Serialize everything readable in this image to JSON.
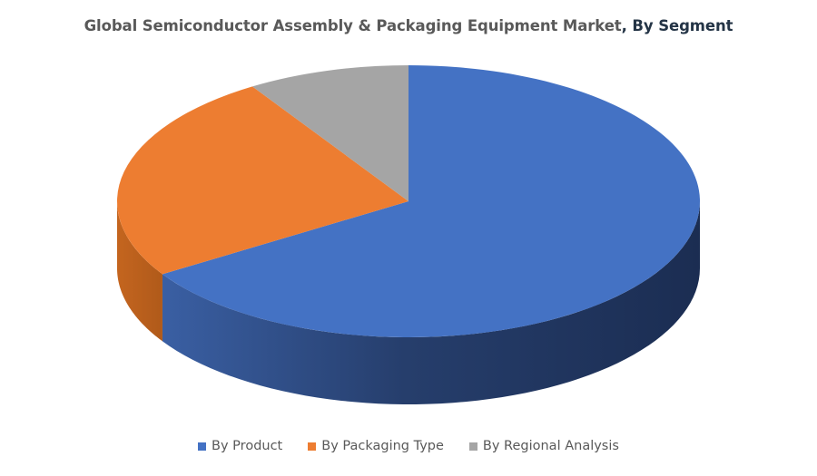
{
  "chart_data": {
    "type": "pie",
    "title": "Global Semiconductor Assembly & Packaging Equipment Market",
    "title_suffix": ", By Segment",
    "categories": [
      "By Product",
      "By Packaging Type",
      "By Regional Analysis"
    ],
    "values": [
      66,
      25,
      9
    ],
    "colors": [
      "#4472C4",
      "#ED7D31",
      "#A5A5A5"
    ],
    "legend_position": "bottom",
    "style": "3d"
  }
}
